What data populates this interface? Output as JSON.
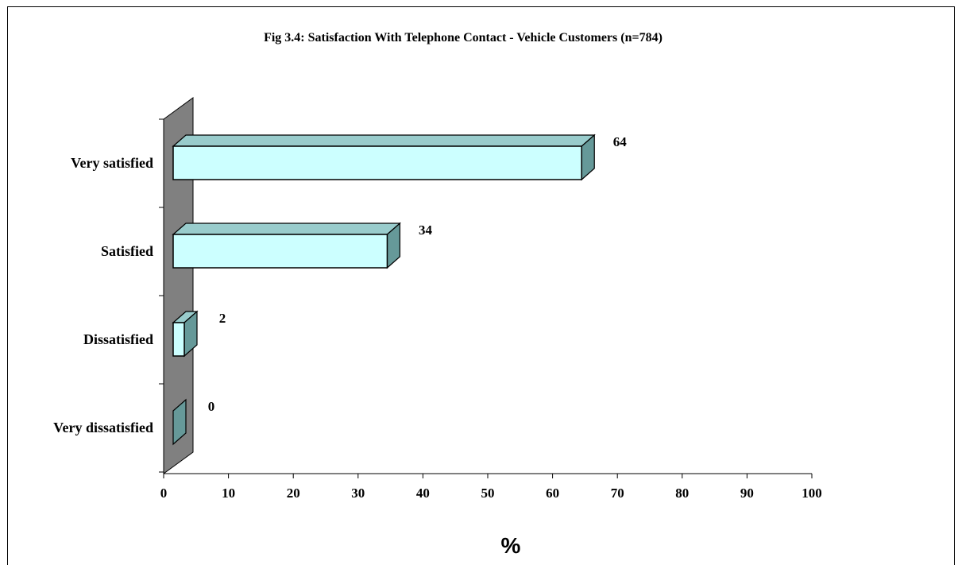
{
  "chart_data": {
    "type": "bar",
    "orientation": "horizontal",
    "title": "Fig 3.4: Satisfaction With Telephone Contact - Vehicle Customers (n=784)",
    "categories": [
      "Very satisfied",
      "Satisfied",
      "Dissatisfied",
      "Very dissatisfied"
    ],
    "values": [
      64,
      34,
      2,
      0
    ],
    "data_labels": [
      "64",
      "34",
      "2",
      "0"
    ],
    "xlabel": "%",
    "ylabel": "",
    "xlim": [
      0,
      100
    ],
    "xticks": [
      0,
      10,
      20,
      30,
      40,
      50,
      60,
      70,
      80,
      90,
      100
    ],
    "grid": false,
    "legend": "none",
    "colors": {
      "bar_face": "#ccffff",
      "bar_top": "#99cccc",
      "bar_side": "#669999",
      "back_wall": "#808080",
      "outline": "#000000"
    }
  }
}
